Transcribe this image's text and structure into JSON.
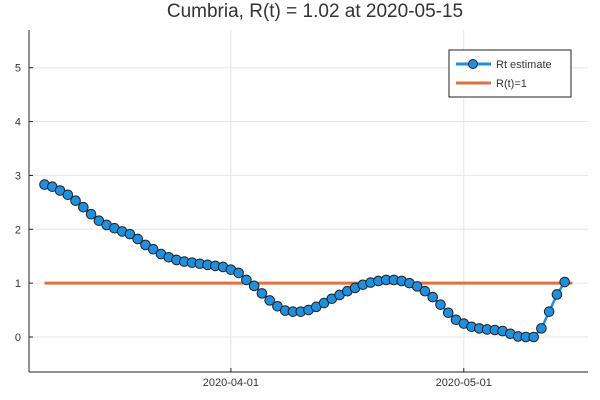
{
  "chart_data": {
    "type": "line",
    "title": "Cumbria, R(t) = 1.02 at 2020-05-15",
    "xlabel": "",
    "ylabel": "",
    "x_start": "2020-03-08",
    "x_end": "2020-05-15",
    "xlim": [
      "2020-03-06",
      "2020-05-17"
    ],
    "ylim": [
      -0.65,
      5.7
    ],
    "x_ticks": [
      {
        "date": "2020-04-01",
        "label": "2020-04-01"
      },
      {
        "date": "2020-05-01",
        "label": "2020-05-01"
      }
    ],
    "y_ticks": [
      0,
      1,
      2,
      3,
      4,
      5
    ],
    "grid": true,
    "legend_position": "top-right",
    "series": [
      {
        "name": "Rt estimate",
        "color": "#1f8fe0",
        "marker": "circle",
        "values": [
          2.83,
          2.79,
          2.72,
          2.64,
          2.53,
          2.41,
          2.28,
          2.16,
          2.08,
          2.02,
          1.96,
          1.91,
          1.82,
          1.71,
          1.63,
          1.54,
          1.48,
          1.43,
          1.4,
          1.38,
          1.36,
          1.34,
          1.32,
          1.3,
          1.25,
          1.19,
          1.06,
          0.95,
          0.81,
          0.68,
          0.57,
          0.49,
          0.47,
          0.47,
          0.5,
          0.56,
          0.63,
          0.71,
          0.78,
          0.85,
          0.91,
          0.97,
          1.01,
          1.04,
          1.06,
          1.06,
          1.04,
          1.0,
          0.94,
          0.85,
          0.74,
          0.6,
          0.45,
          0.32,
          0.25,
          0.19,
          0.16,
          0.14,
          0.13,
          0.11,
          0.06,
          0.01,
          0.0,
          0.0,
          0.16,
          0.47,
          0.79,
          1.02
        ]
      },
      {
        "name": "R(t)=1",
        "color": "#e0703f",
        "marker": "none",
        "values": [
          1,
          1
        ]
      }
    ]
  }
}
